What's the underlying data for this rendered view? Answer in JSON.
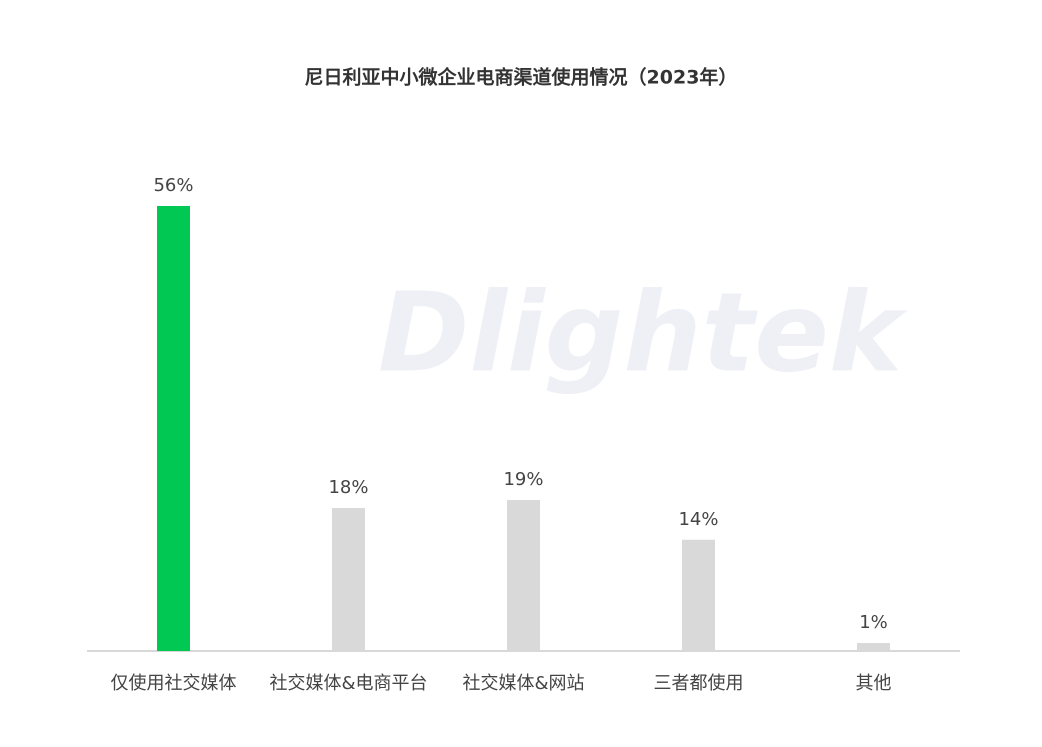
{
  "chart_data": {
    "type": "bar",
    "title": "尼日利亚中小微企业电商渠道使用情况（2023年）",
    "categories": [
      "仅使用社交媒体",
      "社交媒体&电商平台",
      "社交媒体&网站",
      "三者都使用",
      "其他"
    ],
    "values": [
      56,
      18,
      19,
      14,
      1
    ],
    "value_labels": [
      "56%",
      "18%",
      "19%",
      "14%",
      "1%"
    ],
    "colors": [
      "#00c853",
      "#d9d9d9",
      "#d9d9d9",
      "#d9d9d9",
      "#d9d9d9"
    ],
    "watermark": "Dlightek"
  }
}
